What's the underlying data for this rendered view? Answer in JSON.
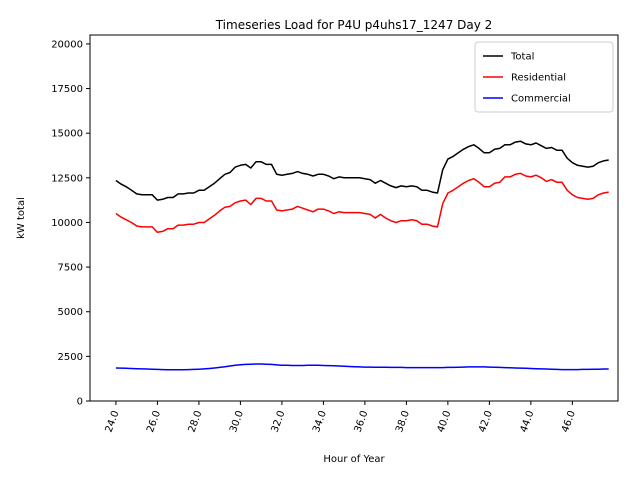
{
  "chart_data": {
    "type": "line",
    "title": "Timeseries Load for P4U p4uhs17_1247  Day 2",
    "xlabel": "Hour of Year",
    "ylabel": "kW total",
    "xlim": [
      22.75,
      48.2
    ],
    "ylim": [
      0,
      20500
    ],
    "xticks": [
      "24.0",
      "26.0",
      "28.0",
      "30.0",
      "32.0",
      "34.0",
      "36.0",
      "38.0",
      "40.0",
      "42.0",
      "44.0",
      "46.0"
    ],
    "yticks": [
      "0",
      "2500",
      "5000",
      "7500",
      "10000",
      "12500",
      "15000",
      "17500",
      "20000"
    ],
    "legend_position": "top-right",
    "grid": false,
    "x": [
      24.0,
      24.25,
      24.5,
      24.75,
      25.0,
      25.25,
      25.5,
      25.75,
      26.0,
      26.25,
      26.5,
      26.75,
      27.0,
      27.25,
      27.5,
      27.75,
      28.0,
      28.25,
      28.5,
      28.75,
      29.0,
      29.25,
      29.5,
      29.75,
      30.0,
      30.25,
      30.5,
      30.75,
      31.0,
      31.25,
      31.5,
      31.75,
      32.0,
      32.25,
      32.5,
      32.75,
      33.0,
      33.25,
      33.5,
      33.75,
      34.0,
      34.25,
      34.5,
      34.75,
      35.0,
      35.25,
      35.5,
      35.75,
      36.0,
      36.25,
      36.5,
      36.75,
      37.0,
      37.25,
      37.5,
      37.75,
      38.0,
      38.25,
      38.5,
      38.75,
      39.0,
      39.25,
      39.5,
      39.75,
      40.0,
      40.25,
      40.5,
      40.75,
      41.0,
      41.25,
      41.5,
      41.75,
      42.0,
      42.25,
      42.5,
      42.75,
      43.0,
      43.25,
      43.5,
      43.75,
      44.0,
      44.25,
      44.5,
      44.75,
      45.0,
      45.25,
      45.5,
      45.75,
      46.0,
      46.25,
      46.5,
      46.75,
      47.0,
      47.25,
      47.5,
      47.75
    ],
    "series": [
      {
        "name": "Total",
        "color": "#000000",
        "values": [
          12350,
          12150,
          12000,
          11800,
          11600,
          11550,
          11550,
          11550,
          11250,
          11300,
          11400,
          11400,
          11600,
          11600,
          11650,
          11650,
          11800,
          11800,
          12000,
          12200,
          12450,
          12700,
          12800,
          13100,
          13200,
          13250,
          13050,
          13400,
          13400,
          13250,
          13250,
          12700,
          12650,
          12700,
          12750,
          12850,
          12750,
          12700,
          12600,
          12700,
          12700,
          12600,
          12450,
          12550,
          12500,
          12500,
          12500,
          12500,
          12450,
          12400,
          12200,
          12350,
          12200,
          12050,
          11950,
          12050,
          12000,
          12050,
          12000,
          11800,
          11800,
          11700,
          11650,
          12950,
          13550,
          13700,
          13900,
          14100,
          14250,
          14350,
          14150,
          13900,
          13900,
          14100,
          14150,
          14350,
          14350,
          14500,
          14550,
          14400,
          14350,
          14450,
          14300,
          14150,
          14200,
          14050,
          14050,
          13600,
          13350,
          13200,
          13150,
          13100,
          13150,
          13350,
          13450,
          13500
        ]
      },
      {
        "name": "Residential",
        "color": "#ff0000",
        "values": [
          10500,
          10300,
          10150,
          10000,
          9800,
          9750,
          9750,
          9750,
          9450,
          9500,
          9650,
          9650,
          9850,
          9850,
          9900,
          9900,
          10000,
          10000,
          10200,
          10400,
          10650,
          10850,
          10900,
          11100,
          11200,
          11250,
          11000,
          11350,
          11350,
          11200,
          11200,
          10700,
          10650,
          10700,
          10750,
          10900,
          10800,
          10700,
          10600,
          10750,
          10750,
          10650,
          10500,
          10600,
          10550,
          10550,
          10550,
          10550,
          10500,
          10450,
          10250,
          10450,
          10250,
          10100,
          10000,
          10100,
          10100,
          10150,
          10100,
          9900,
          9900,
          9800,
          9750,
          11050,
          11650,
          11800,
          12000,
          12200,
          12350,
          12450,
          12250,
          12000,
          12000,
          12200,
          12250,
          12550,
          12550,
          12700,
          12750,
          12600,
          12550,
          12650,
          12500,
          12300,
          12400,
          12250,
          12250,
          11800,
          11550,
          11400,
          11350,
          11300,
          11350,
          11550,
          11650,
          11700
        ]
      },
      {
        "name": "Commercial",
        "color": "#0000ff",
        "values": [
          1850,
          1840,
          1830,
          1820,
          1810,
          1800,
          1790,
          1780,
          1770,
          1760,
          1750,
          1750,
          1750,
          1750,
          1760,
          1770,
          1780,
          1800,
          1820,
          1850,
          1880,
          1920,
          1960,
          2000,
          2030,
          2050,
          2060,
          2070,
          2070,
          2060,
          2050,
          2020,
          2000,
          2000,
          1990,
          1990,
          1990,
          2000,
          2000,
          2000,
          1990,
          1980,
          1970,
          1960,
          1950,
          1930,
          1920,
          1910,
          1900,
          1900,
          1890,
          1890,
          1890,
          1880,
          1880,
          1880,
          1870,
          1870,
          1870,
          1870,
          1870,
          1870,
          1870,
          1870,
          1880,
          1880,
          1890,
          1900,
          1910,
          1910,
          1910,
          1910,
          1900,
          1890,
          1880,
          1870,
          1860,
          1850,
          1840,
          1830,
          1820,
          1810,
          1800,
          1790,
          1780,
          1770,
          1760,
          1760,
          1760,
          1760,
          1770,
          1770,
          1780,
          1780,
          1790,
          1790
        ]
      }
    ]
  }
}
